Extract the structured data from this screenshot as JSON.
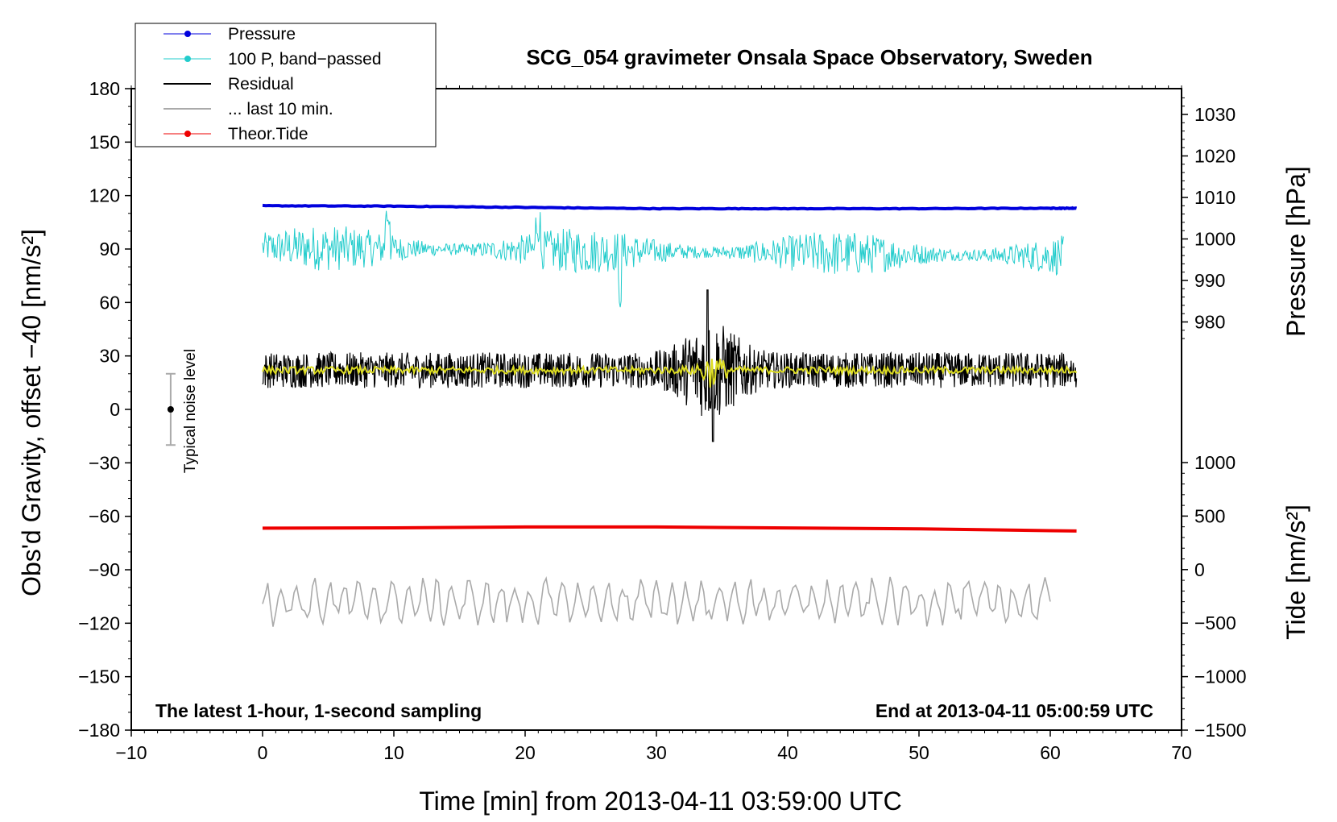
{
  "chart_data": {
    "type": "line",
    "title": "SCG_054 gravimeter Onsala Space Observatory, Sweden",
    "xlabel": "Time [min] from 2013-04-11 03:59:00 UTC",
    "ylabel_left": "Obs'd Gravity, offset −40 [nm/s²]",
    "ylabel_right_top": "Pressure [hPa]",
    "ylabel_right_bottom": "Tide [nm/s²]",
    "xlim": [
      -10,
      70
    ],
    "ylim": [
      -180,
      180
    ],
    "pressure_ylim": [
      972,
      1034
    ],
    "tide_ylim": [
      -1500,
      1000
    ],
    "x_ticks": [
      -10,
      0,
      10,
      20,
      30,
      40,
      50,
      60,
      70
    ],
    "x_tick_labels": [
      "−10",
      "0",
      "10",
      "20",
      "30",
      "40",
      "50",
      "60",
      "70"
    ],
    "y_ticks": [
      180,
      150,
      120,
      90,
      60,
      30,
      0,
      -30,
      -60,
      -90,
      -120,
      -150,
      -180
    ],
    "y_tick_labels": [
      "180",
      "150",
      "120",
      "90",
      "60",
      "30",
      "0",
      "−30",
      "−60",
      "−90",
      "−120",
      "−150",
      "−180"
    ],
    "pressure_ticks": [
      1030,
      1020,
      1010,
      1000,
      990,
      980
    ],
    "pressure_tick_labels": [
      "1030",
      "1020",
      "1010",
      "1000",
      "990",
      "980"
    ],
    "tide_ticks": [
      1000,
      500,
      0,
      -500,
      -1000,
      -1500
    ],
    "tide_tick_labels": [
      "1000",
      "500",
      "0",
      "−500",
      "−1000",
      "−1500"
    ],
    "legend": [
      {
        "label": "Pressure",
        "color": "#0000dd"
      },
      {
        "label": "100 P, band−passed",
        "color": "#22cccc"
      },
      {
        "label": "Residual",
        "color": "#000000"
      },
      {
        "label": "... last 10 min.",
        "color": "#aaaaaa"
      },
      {
        "label": "Theor.Tide",
        "color": "#ee0000"
      }
    ],
    "series": [
      {
        "name": "Pressure",
        "axis": "pressure",
        "color": "#0000dd",
        "x": [
          0,
          10,
          20,
          30,
          40,
          50,
          60,
          62
        ],
        "values": [
          1008.0,
          1007.9,
          1007.6,
          1007.3,
          1007.3,
          1007.3,
          1007.4,
          1007.4
        ]
      },
      {
        "name": "100 P, band-passed",
        "axis": "left",
        "color": "#22cccc",
        "x_range": [
          0,
          61
        ],
        "baseline": 91,
        "amplitude": 8
      },
      {
        "name": "Residual",
        "axis": "left",
        "color": "#000000",
        "x_range": [
          0,
          62
        ],
        "baseline": 22,
        "amplitude": 10
      },
      {
        "name": "... last 10 min.",
        "axis": "left",
        "color": "#aaaaaa",
        "x_range": [
          0,
          60
        ],
        "baseline": -108,
        "amplitude": 10
      },
      {
        "name": "Theor.Tide",
        "axis": "tide",
        "color": "#ee0000",
        "x": [
          0,
          10,
          20,
          30,
          40,
          50,
          60,
          62
        ],
        "values": [
          387,
          390,
          398,
          398,
          389,
          381,
          364,
          361
        ]
      },
      {
        "name": "Residual smoothed",
        "axis": "left",
        "color": "#dddd22",
        "x_range": [
          0,
          62
        ],
        "baseline": 22,
        "amplitude": 2
      }
    ],
    "noise_bar": {
      "x": -7,
      "center": 0,
      "low": -20,
      "high": 20,
      "label": "Typical noise level"
    },
    "annotations": {
      "bottom_left": "The latest 1-hour, 1-second sampling",
      "bottom_right": "End at 2013-04-11 05:00:59 UTC"
    }
  }
}
